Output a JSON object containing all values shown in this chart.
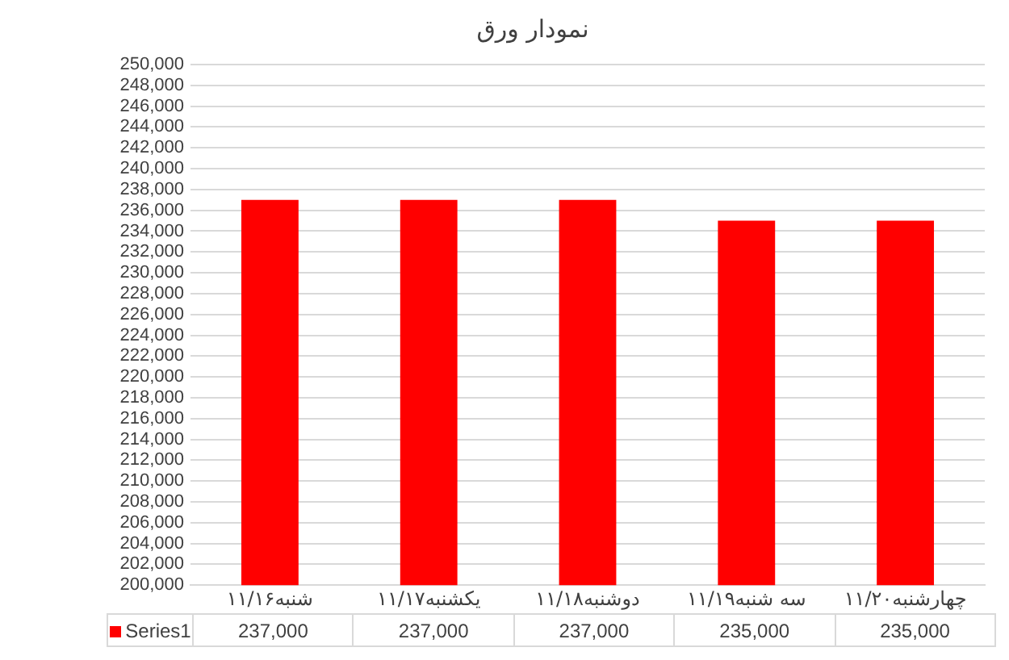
{
  "chart_data": {
    "type": "bar",
    "title": "نمودار ورق",
    "categories": [
      "شنبه۱۱/۱۶",
      "یکشنبه۱۱/۱۷",
      "دوشنبه۱۱/۱۸",
      "سه شنبه۱۱/۱۹",
      "چهارشنبه۱۱/۲۰"
    ],
    "series": [
      {
        "name": "Series1",
        "color": "#ff0000",
        "values": [
          237000,
          237000,
          237000,
          235000,
          235000
        ],
        "value_labels": [
          "237,000",
          "237,000",
          "237,000",
          "235,000",
          "235,000"
        ]
      }
    ],
    "ylim": [
      200000,
      250000
    ],
    "yticks": [
      {
        "value": 200000,
        "label": "200,000"
      },
      {
        "value": 202000,
        "label": "202,000"
      },
      {
        "value": 204000,
        "label": "204,000"
      },
      {
        "value": 206000,
        "label": "206,000"
      },
      {
        "value": 208000,
        "label": "208,000"
      },
      {
        "value": 210000,
        "label": "210,000"
      },
      {
        "value": 212000,
        "label": "212,000"
      },
      {
        "value": 214000,
        "label": "214,000"
      },
      {
        "value": 216000,
        "label": "216,000"
      },
      {
        "value": 218000,
        "label": "218,000"
      },
      {
        "value": 220000,
        "label": "220,000"
      },
      {
        "value": 222000,
        "label": "222,000"
      },
      {
        "value": 224000,
        "label": "224,000"
      },
      {
        "value": 226000,
        "label": "226,000"
      },
      {
        "value": 228000,
        "label": "228,000"
      },
      {
        "value": 230000,
        "label": "230,000"
      },
      {
        "value": 232000,
        "label": "232,000"
      },
      {
        "value": 234000,
        "label": "234,000"
      },
      {
        "value": 236000,
        "label": "236,000"
      },
      {
        "value": 238000,
        "label": "238,000"
      },
      {
        "value": 240000,
        "label": "240,000"
      },
      {
        "value": 242000,
        "label": "242,000"
      },
      {
        "value": 244000,
        "label": "244,000"
      },
      {
        "value": 246000,
        "label": "246,000"
      },
      {
        "value": 248000,
        "label": "248,000"
      },
      {
        "value": 250000,
        "label": "250,000"
      }
    ],
    "grid": "y",
    "legend": "bottom left"
  }
}
